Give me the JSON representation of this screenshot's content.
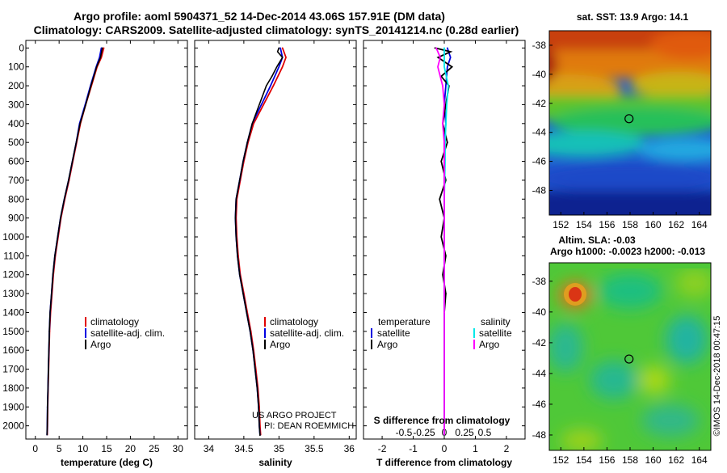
{
  "header": {
    "title_line1": "Argo profile: aoml 5904371_52 14-Dec-2014 43.06S 157.91E (DM data)",
    "title_line2": "Climatology: CARS2009. Satellite-adjusted climatology: synTS_20141214.nc (0.28d earlier)"
  },
  "colors": {
    "climatology": "#e00000",
    "satellite": "#0000e0",
    "argo": "#000000",
    "satellite_salinity": "#00e8e8",
    "argo_salinity": "#ff00ff"
  },
  "depth_axis": {
    "ticks": [
      "0",
      "100",
      "200",
      "300",
      "400",
      "500",
      "600",
      "700",
      "800",
      "900",
      "1000",
      "1100",
      "1200",
      "1300",
      "1400",
      "1500",
      "1600",
      "1700",
      "1800",
      "1900",
      "2000"
    ],
    "range": [
      -40,
      2070
    ]
  },
  "chart_data": [
    {
      "id": "temperature",
      "type": "line",
      "xlabel": "temperature (deg C)",
      "xlim": [
        -2,
        32
      ],
      "xticks": [
        "0",
        "5",
        "10",
        "15",
        "20",
        "25",
        "30"
      ],
      "xtick_values": [
        0,
        5,
        10,
        15,
        20,
        25,
        30
      ],
      "legend": [
        "climatology",
        "satellite-adj. clim.",
        "Argo"
      ],
      "series": [
        {
          "name": "climatology",
          "color": "#e00000",
          "depth": [
            0,
            50,
            100,
            200,
            300,
            400,
            500,
            600,
            700,
            800,
            900,
            1000,
            1100,
            1200,
            1300,
            1400,
            1500,
            1600,
            1700,
            1800,
            1900,
            2000,
            2050
          ],
          "values": [
            14.4,
            13.9,
            13.0,
            11.8,
            10.6,
            9.5,
            8.7,
            7.9,
            7.1,
            6.2,
            5.4,
            4.8,
            4.2,
            3.8,
            3.5,
            3.2,
            3.0,
            2.9,
            2.8,
            2.7,
            2.6,
            2.55,
            2.5
          ]
        },
        {
          "name": "satellite-adj. clim.",
          "color": "#0000e0",
          "depth": [
            0,
            50,
            100,
            200,
            300,
            400,
            500,
            600,
            700,
            800,
            900,
            1000,
            1100,
            1200,
            1300,
            1400,
            1500,
            1600,
            1700,
            1800,
            1900,
            2000,
            2050
          ],
          "values": [
            13.9,
            13.5,
            12.8,
            11.6,
            10.5,
            9.3,
            8.6,
            7.8,
            7.0,
            6.1,
            5.3,
            4.7,
            4.1,
            3.7,
            3.4,
            3.1,
            2.95,
            2.85,
            2.75,
            2.65,
            2.55,
            2.5,
            2.45
          ]
        },
        {
          "name": "Argo",
          "color": "#000000",
          "depth": [
            0,
            50,
            100,
            200,
            300,
            400,
            500,
            600,
            700,
            800,
            900,
            1000,
            1100,
            1200,
            1300,
            1400,
            1500,
            1600,
            1700,
            1800,
            1900,
            2000,
            2050
          ],
          "values": [
            14.1,
            13.7,
            12.9,
            11.7,
            10.6,
            9.4,
            8.6,
            7.8,
            7.0,
            6.1,
            5.3,
            4.7,
            4.1,
            3.7,
            3.4,
            3.1,
            2.95,
            2.85,
            2.75,
            2.65,
            2.55,
            2.5,
            2.45
          ]
        }
      ]
    },
    {
      "id": "salinity",
      "type": "line",
      "xlabel": "salinity",
      "xlim": [
        33.8,
        36.1
      ],
      "xticks": [
        "34",
        "34.5",
        "35",
        "35.5",
        "36"
      ],
      "xtick_values": [
        34,
        34.5,
        35,
        35.5,
        36
      ],
      "legend": [
        "climatology",
        "satellite-adj. clim.",
        "Argo"
      ],
      "annotations": [
        "US ARGO PROJECT",
        "PI: DEAN ROEMMICH"
      ],
      "series": [
        {
          "name": "climatology",
          "color": "#e00000",
          "depth": [
            0,
            50,
            100,
            200,
            300,
            400,
            500,
            600,
            700,
            800,
            900,
            1000,
            1100,
            1200,
            1300,
            1400,
            1500,
            1600,
            1700,
            1800,
            1900,
            2000,
            2050
          ],
          "values": [
            35.05,
            35.1,
            35.05,
            34.92,
            34.78,
            34.64,
            34.56,
            34.5,
            34.45,
            34.4,
            34.39,
            34.4,
            34.42,
            34.45,
            34.5,
            34.55,
            34.6,
            34.64,
            34.67,
            34.7,
            34.72,
            34.73,
            34.74
          ]
        },
        {
          "name": "satellite-adj. clim.",
          "color": "#0000e0",
          "depth": [
            0,
            50,
            100,
            200,
            300,
            400,
            500,
            600,
            700,
            800,
            900,
            1000,
            1100,
            1200,
            1300,
            1400,
            1500,
            1600,
            1700,
            1800,
            1900,
            2000,
            2050
          ],
          "values": [
            35.02,
            35.05,
            35.0,
            34.88,
            34.75,
            34.62,
            34.55,
            34.49,
            34.44,
            34.39,
            34.38,
            34.39,
            34.41,
            34.44,
            34.49,
            34.54,
            34.59,
            34.63,
            34.66,
            34.69,
            34.71,
            34.72,
            34.73
          ]
        },
        {
          "name": "Argo",
          "color": "#000000",
          "depth": [
            0,
            20,
            50,
            100,
            150,
            200,
            300,
            400,
            500,
            600,
            700,
            800,
            900,
            1000,
            1100,
            1200,
            1300,
            1400,
            1500,
            1600,
            1700,
            1800,
            1900,
            2000,
            2050
          ],
          "values": [
            35.0,
            34.98,
            35.05,
            34.97,
            34.9,
            34.82,
            34.72,
            34.62,
            34.55,
            34.49,
            34.44,
            34.39,
            34.38,
            34.39,
            34.41,
            34.44,
            34.49,
            34.54,
            34.59,
            34.63,
            34.66,
            34.69,
            34.71,
            34.72,
            34.73
          ]
        }
      ]
    },
    {
      "id": "difference",
      "type": "line",
      "xlabel": "T difference from climatology",
      "xlim": [
        -2.6,
        2.6
      ],
      "xticks": [
        "-2",
        "-1",
        "0",
        "1",
        "2"
      ],
      "xtick_values": [
        -2,
        -1,
        0,
        1,
        2
      ],
      "secondary_title": "S difference from climatology",
      "secondary_ticks": [
        "-0.5",
        "-0.25",
        "0",
        "0.25",
        "0.5"
      ],
      "secondary_tick_values": [
        -0.5,
        -0.25,
        0,
        0.25,
        0.5
      ],
      "legend_left_title": "temperature",
      "legend_left": [
        "satellite",
        "Argo"
      ],
      "legend_right_title": "salinity",
      "legend_right": [
        "satellite",
        "Argo"
      ],
      "series": [
        {
          "name": "temperature satellite",
          "color": "#0000e0",
          "depth": [
            0,
            50,
            100,
            200,
            300,
            400,
            500,
            700,
            900,
            1100,
            1300,
            1500,
            1700,
            1900,
            2050
          ],
          "values": [
            0.1,
            0.2,
            0.1,
            0.05,
            0.0,
            0.05,
            0.0,
            0.0,
            0.0,
            0.0,
            0.0,
            0.0,
            0.0,
            0.0,
            0.0
          ]
        },
        {
          "name": "temperature Argo",
          "color": "#000000",
          "depth": [
            0,
            20,
            50,
            100,
            150,
            200,
            300,
            400,
            500,
            600,
            700,
            800,
            900,
            1000,
            1100,
            1200,
            1300,
            1400,
            1500,
            1700,
            1900,
            2050
          ],
          "values": [
            -0.3,
            0.2,
            -0.2,
            0.25,
            -0.1,
            0.15,
            0.05,
            -0.05,
            0.1,
            -0.1,
            0.05,
            -0.15,
            0.0,
            -0.1,
            0.05,
            -0.05,
            0.05,
            0.0,
            0.0,
            0.0,
            0.0,
            0.0
          ]
        },
        {
          "name": "salinity satellite",
          "color": "#00e8e8",
          "depth": [
            0,
            100,
            200,
            300,
            400,
            500,
            600,
            800,
            1000,
            1200,
            1400,
            1600,
            1800,
            2050
          ],
          "values": [
            0.0,
            0.0,
            0.05,
            0.03,
            0.02,
            0.01,
            0.01,
            0.0,
            0.0,
            0.0,
            0.0,
            0.0,
            0.0,
            0.0
          ]
        },
        {
          "name": "salinity Argo",
          "color": "#ff00ff",
          "depth": [
            0,
            50,
            100,
            150,
            200,
            300,
            400,
            500,
            600,
            800,
            1000,
            1200,
            1400,
            1600,
            1800,
            2050
          ],
          "values": [
            -0.1,
            -0.05,
            -0.08,
            -0.05,
            -0.02,
            0.0,
            -0.02,
            0.0,
            0.0,
            0.0,
            0.0,
            0.0,
            0.0,
            0.0,
            0.0,
            0.0
          ]
        }
      ]
    },
    {
      "id": "sst_map",
      "type": "heatmap",
      "title": "sat. SST: 13.9 Argo: 14.1",
      "xticks": [
        "152",
        "154",
        "156",
        "158",
        "160",
        "162",
        "164"
      ],
      "xtick_values": [
        152,
        154,
        156,
        158,
        160,
        162,
        164
      ],
      "yticks": [
        "-38",
        "-40",
        "-42",
        "-44",
        "-46",
        "-48"
      ],
      "ytick_values": [
        -38,
        -40,
        -42,
        -44,
        -46,
        -48
      ],
      "xlim": [
        151.0,
        165.0
      ],
      "ylim": [
        -49.7,
        -37.0
      ],
      "marker": {
        "lon": 157.91,
        "lat": -43.06
      }
    },
    {
      "id": "sla_map",
      "type": "heatmap",
      "title_line1": "Altim. SLA: -0.03",
      "title_line2": "Argo h1000: -0.0023 h2000: -0.013",
      "xticks": [
        "152",
        "154",
        "156",
        "158",
        "160",
        "162",
        "164"
      ],
      "xtick_values": [
        152,
        154,
        156,
        158,
        160,
        162,
        164
      ],
      "yticks": [
        "-38",
        "-40",
        "-42",
        "-44",
        "-46",
        "-48"
      ],
      "ytick_values": [
        -38,
        -40,
        -42,
        -44,
        -46,
        -48
      ],
      "xlim": [
        151.0,
        165.0
      ],
      "ylim": [
        -49.0,
        -36.8
      ],
      "marker": {
        "lon": 157.91,
        "lat": -43.06
      }
    }
  ],
  "side_label": "©IMOS 14-Dec-2018 00:47:15"
}
